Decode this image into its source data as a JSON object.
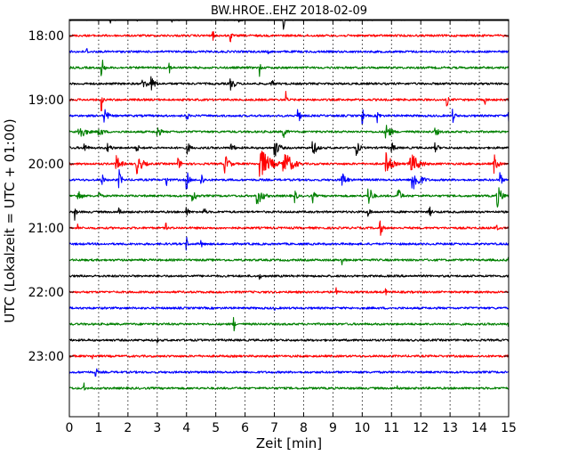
{
  "chart_data": {
    "type": "line",
    "title": "BW.HROE..EHZ 2018-02-09",
    "xlabel": "Zeit  [min]",
    "ylabel": "UTC (Lokalzeit = UTC + 01:00)",
    "xlim": [
      0,
      15
    ],
    "x_ticks": [
      "0",
      "1",
      "2",
      "3",
      "4",
      "5",
      "6",
      "7",
      "8",
      "9",
      "10",
      "11",
      "12",
      "13",
      "14",
      "15"
    ],
    "y_ticks": [
      "18:00",
      "19:00",
      "20:00",
      "21:00",
      "22:00",
      "23:00"
    ],
    "grid": true,
    "colors": [
      "#000000",
      "#ff0000",
      "#0000ff",
      "#008000"
    ],
    "traces_start": "17:45",
    "trace_interval_minutes": 15,
    "trace_count": 24
  }
}
